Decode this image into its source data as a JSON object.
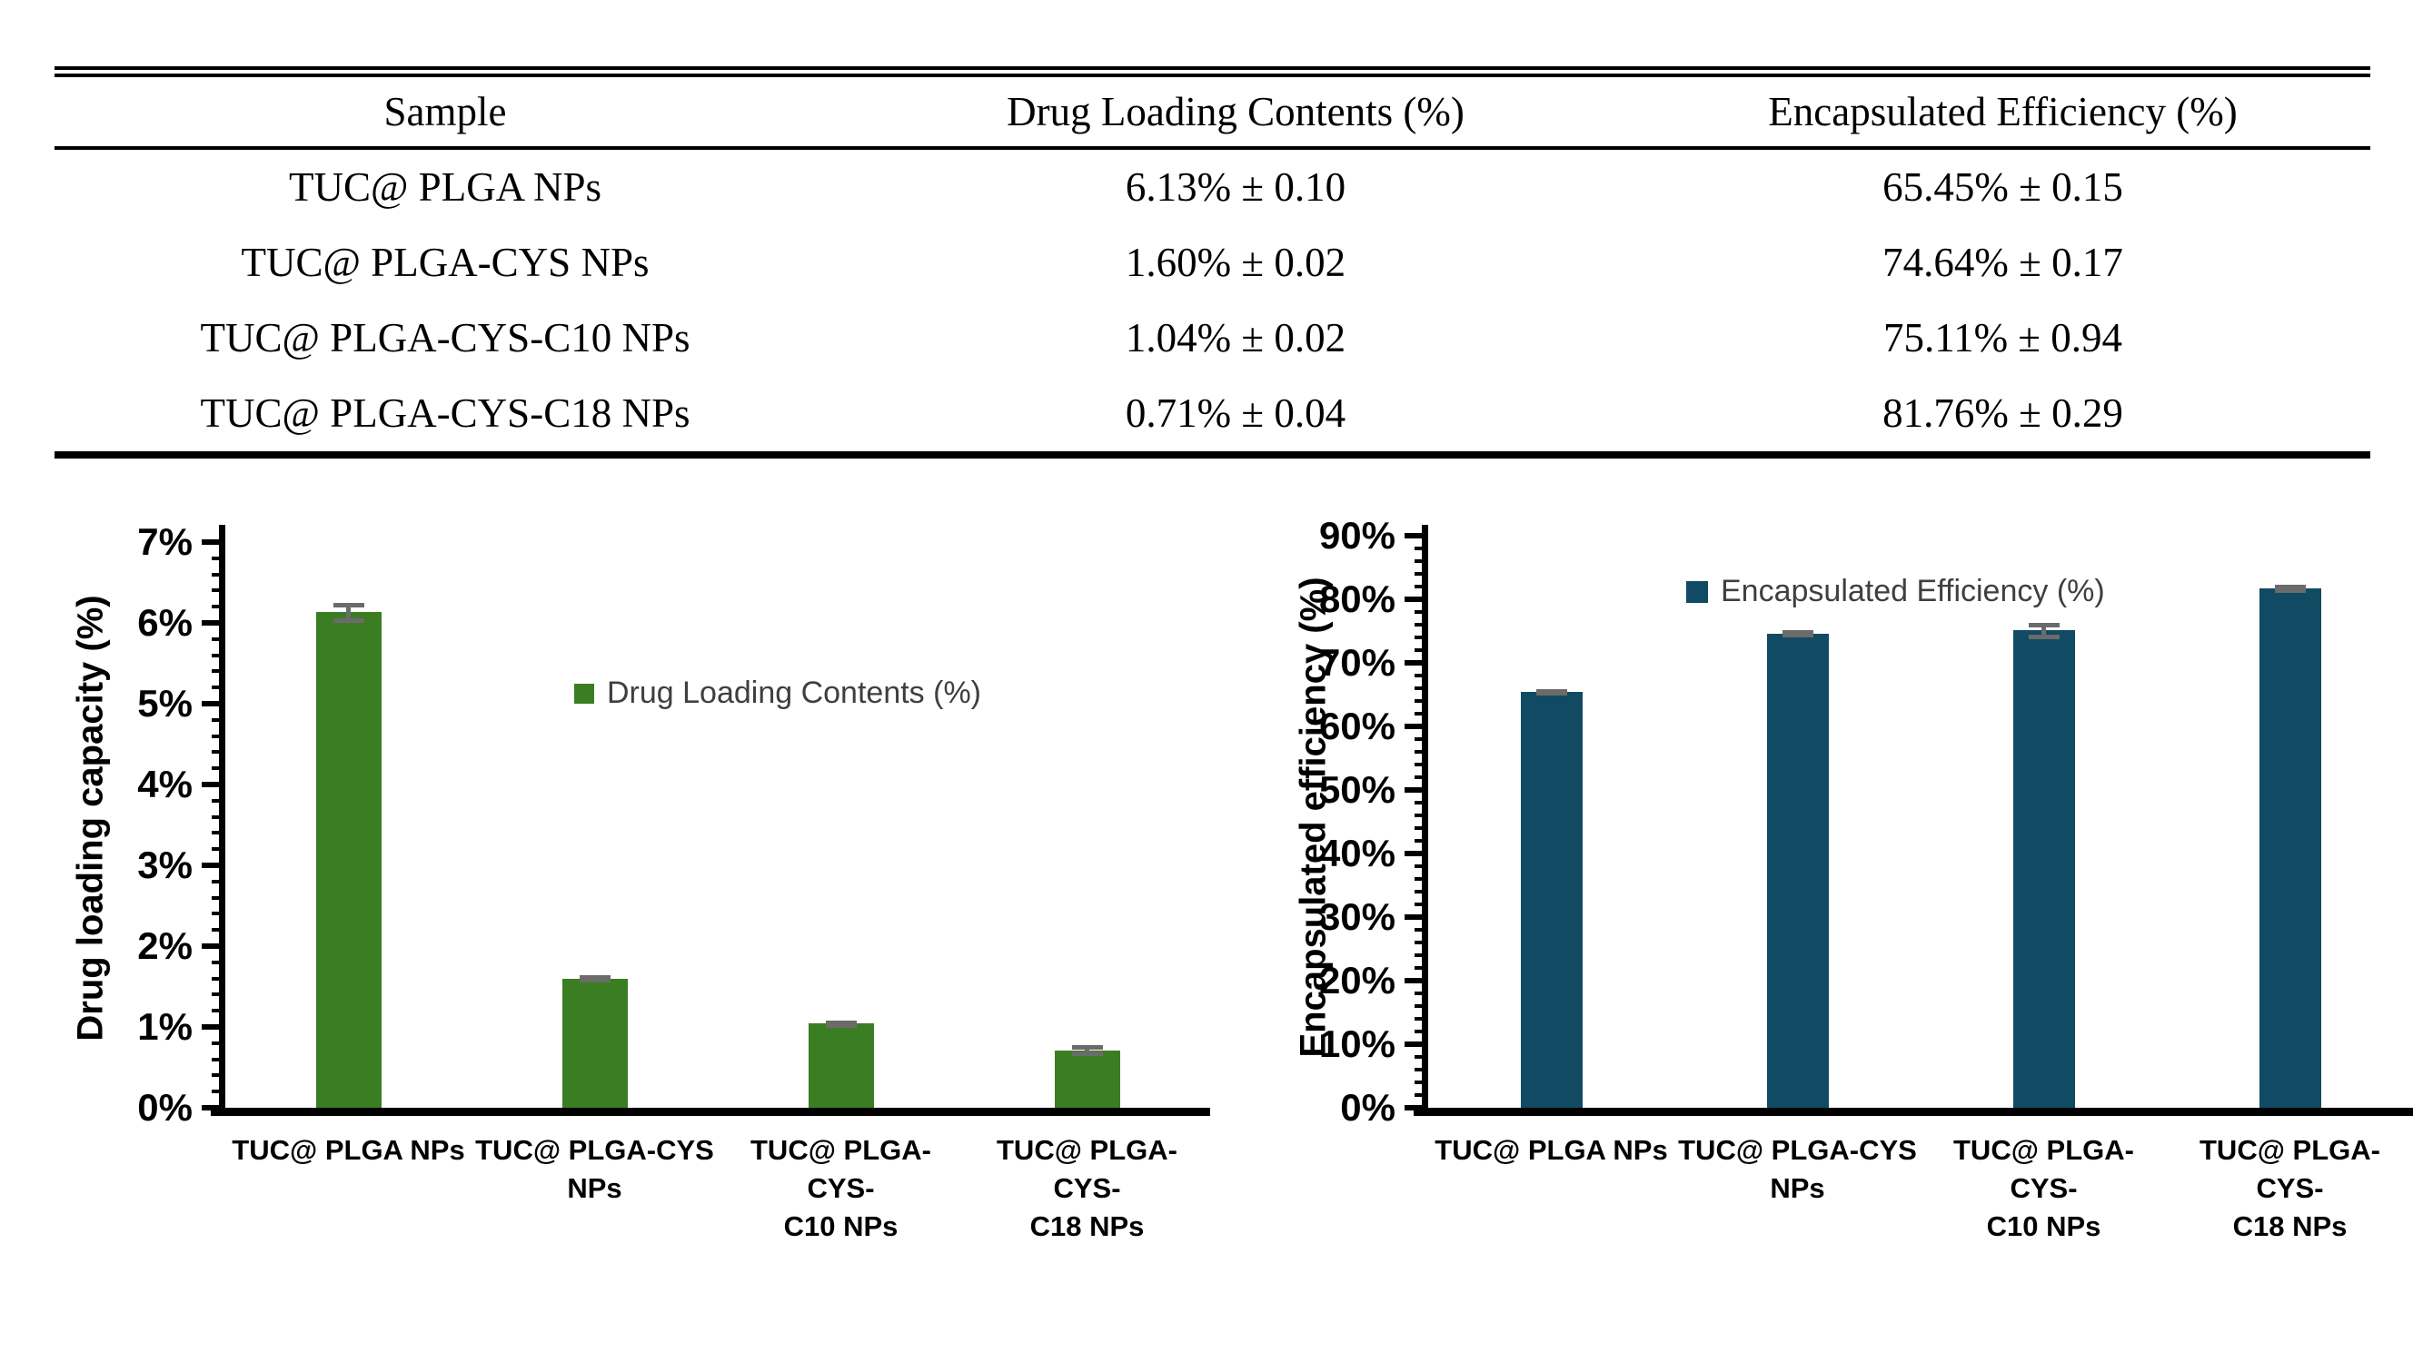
{
  "table": {
    "headers": [
      "Sample",
      "Drug Loading Contents (%)",
      "Encapsulated Efficiency  (%)"
    ],
    "rows": [
      {
        "sample": "TUC@ PLGA NPs",
        "drug_loading": "6.13% ± 0.10",
        "encapsulated_efficiency": "65.45% ± 0.15"
      },
      {
        "sample": "TUC@ PLGA-CYS NPs",
        "drug_loading": "1.60% ± 0.02",
        "encapsulated_efficiency": "74.64% ± 0.17"
      },
      {
        "sample": "TUC@ PLGA-CYS-C10 NPs",
        "drug_loading": "1.04% ± 0.02",
        "encapsulated_efficiency": "75.11% ± 0.94"
      },
      {
        "sample": "TUC@ PLGA-CYS-C18 NPs",
        "drug_loading": "0.71% ± 0.04",
        "encapsulated_efficiency": "81.76% ± 0.29"
      }
    ]
  },
  "chart_data": [
    {
      "type": "bar",
      "title": "",
      "xlabel": "",
      "ylabel": "Drug loading capacity (%)",
      "categories": [
        "TUC@ PLGA NPs",
        "TUC@ PLGA-CYS NPs",
        "TUC@ PLGA-CYS-C10 NPs",
        "TUC@ PLGA-CYS-C18 NPs"
      ],
      "categories_lines": [
        [
          "TUC@ PLGA NPs"
        ],
        [
          "TUC@ PLGA-CYS",
          "NPs"
        ],
        [
          "TUC@ PLGA-CYS-",
          "C10 NPs"
        ],
        [
          "TUC@ PLGA-CYS-",
          "C18 NPs"
        ]
      ],
      "values": [
        6.13,
        1.6,
        1.04,
        0.71
      ],
      "errors": [
        0.1,
        0.02,
        0.02,
        0.04
      ],
      "ylim": [
        0,
        7
      ],
      "ytick_step": 1,
      "ytick_labels": [
        "0%",
        "1%",
        "2%",
        "3%",
        "4%",
        "5%",
        "6%",
        "7%"
      ],
      "grid": false,
      "legend": {
        "label": "Drug Loading Contents (%)",
        "position": "inside-upper-right"
      },
      "colors": {
        "bar": "#3b7d22",
        "error": "#6b6b6b",
        "axis": "#000000",
        "legend_text": "#3f3f3f"
      }
    },
    {
      "type": "bar",
      "title": "",
      "xlabel": "",
      "ylabel": "Encapsulated efficiency (%)",
      "categories": [
        "TUC@ PLGA NPs",
        "TUC@ PLGA-CYS NPs",
        "TUC@ PLGA-CYS-C10 NPs",
        "TUC@ PLGA-CYS-C18 NPs"
      ],
      "categories_lines": [
        [
          "TUC@ PLGA NPs"
        ],
        [
          "TUC@ PLGA-CYS",
          "NPs"
        ],
        [
          "TUC@ PLGA-CYS-",
          "C10 NPs"
        ],
        [
          "TUC@ PLGA-CYS-",
          "C18 NPs"
        ]
      ],
      "values": [
        65.45,
        74.64,
        75.11,
        81.76
      ],
      "errors": [
        0.15,
        0.17,
        0.94,
        0.29
      ],
      "ylim": [
        0,
        90
      ],
      "ytick_step": 10,
      "ytick_labels": [
        "0%",
        "10%",
        "20%",
        "30%",
        "40%",
        "50%",
        "60%",
        "70%",
        "80%",
        "90%"
      ],
      "grid": false,
      "legend": {
        "label": "Encapsulated Efficiency (%)",
        "position": "inside-top-center"
      },
      "colors": {
        "bar": "#114a63",
        "error": "#6b6b6b",
        "axis": "#000000",
        "legend_text": "#3f3f3f"
      }
    }
  ]
}
